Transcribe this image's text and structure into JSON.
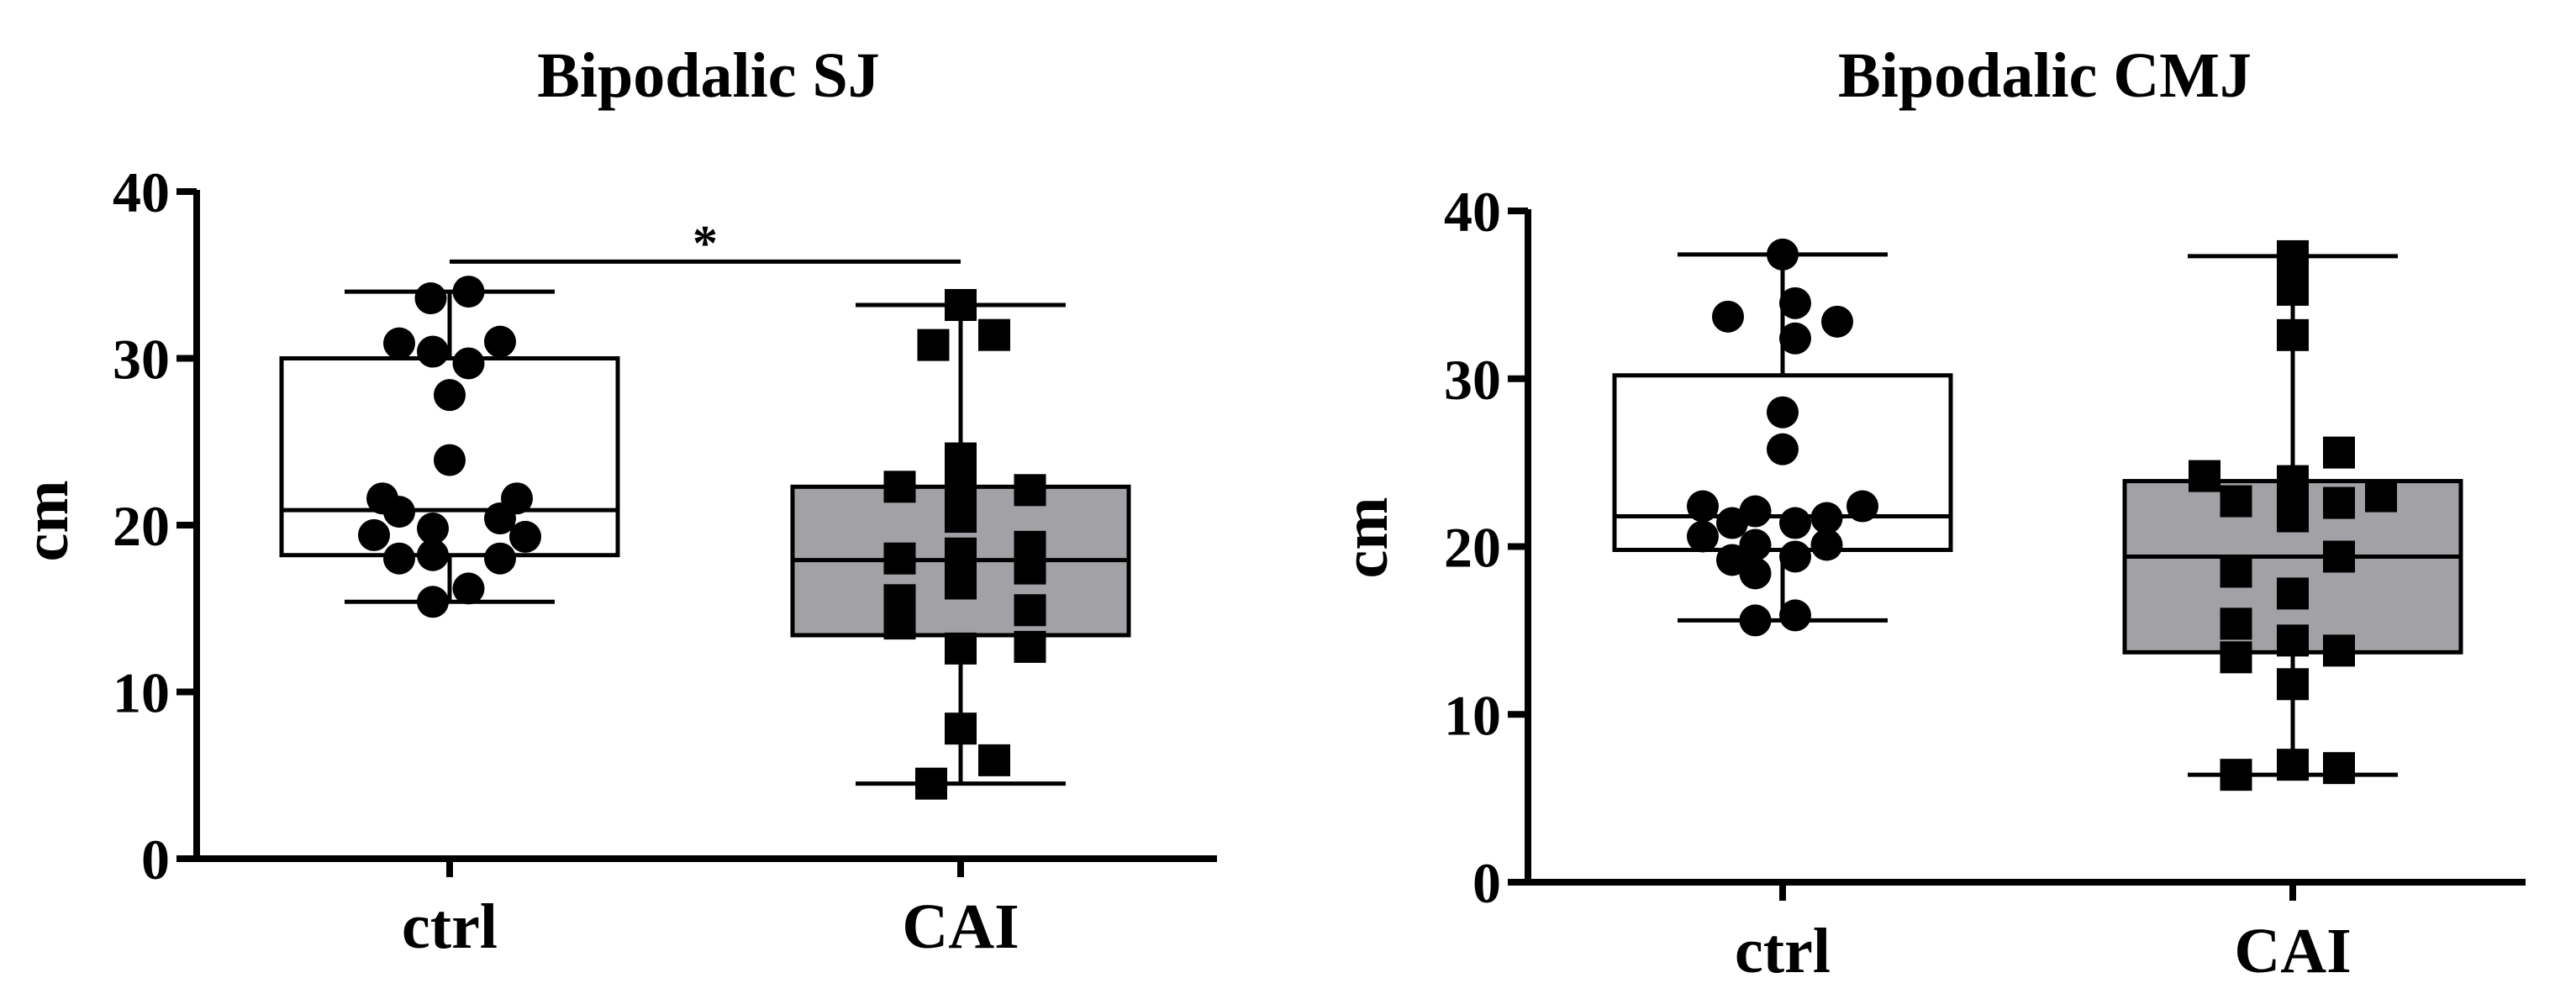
{
  "chart_data": [
    {
      "type": "box",
      "title": "Bipodalic SJ",
      "xlabel": "",
      "ylabel": "cm",
      "ylim": [
        0,
        40
      ],
      "yticks": [
        0,
        10,
        20,
        30,
        40
      ],
      "categories": [
        "ctrl",
        "CAI"
      ],
      "significance": {
        "from": "ctrl",
        "to": "CAI",
        "label": "*",
        "y": 35.8
      },
      "groups": [
        {
          "name": "ctrl",
          "marker": "circle",
          "box_color": "#ffffff",
          "min": 15.4,
          "q1": 18.2,
          "median": 20.9,
          "q3": 30.0,
          "max": 34.0,
          "points": [
            {
              "x": -0.36,
              "y": 19.4
            },
            {
              "x": -0.32,
              "y": 21.6
            },
            {
              "x": -0.24,
              "y": 30.9
            },
            {
              "x": -0.24,
              "y": 20.8
            },
            {
              "x": -0.24,
              "y": 18.0
            },
            {
              "x": -0.09,
              "y": 33.6
            },
            {
              "x": -0.08,
              "y": 30.4
            },
            {
              "x": -0.08,
              "y": 19.8
            },
            {
              "x": -0.08,
              "y": 18.2
            },
            {
              "x": -0.08,
              "y": 15.4
            },
            {
              "x": 0.0,
              "y": 27.8
            },
            {
              "x": 0.0,
              "y": 23.9
            },
            {
              "x": 0.09,
              "y": 34.0
            },
            {
              "x": 0.09,
              "y": 29.7
            },
            {
              "x": 0.09,
              "y": 16.2
            },
            {
              "x": 0.24,
              "y": 31.0
            },
            {
              "x": 0.24,
              "y": 20.4
            },
            {
              "x": 0.24,
              "y": 18.0
            },
            {
              "x": 0.32,
              "y": 21.6
            },
            {
              "x": 0.36,
              "y": 19.3
            }
          ]
        },
        {
          "name": "CAI",
          "marker": "square",
          "box_color": "#a2a1a6",
          "min": 4.5,
          "q1": 13.4,
          "median": 17.9,
          "q3": 22.3,
          "max": 33.2,
          "points": [
            {
              "x": -0.29,
              "y": 22.3
            },
            {
              "x": -0.29,
              "y": 18.0
            },
            {
              "x": -0.29,
              "y": 15.5
            },
            {
              "x": -0.29,
              "y": 14.1
            },
            {
              "x": -0.13,
              "y": 30.8
            },
            {
              "x": -0.14,
              "y": 4.5
            },
            {
              "x": 0.0,
              "y": 33.2
            },
            {
              "x": 0.0,
              "y": 24.0
            },
            {
              "x": 0.0,
              "y": 23.3
            },
            {
              "x": 0.0,
              "y": 22.2
            },
            {
              "x": 0.0,
              "y": 20.5
            },
            {
              "x": 0.0,
              "y": 18.3
            },
            {
              "x": 0.0,
              "y": 17.7
            },
            {
              "x": 0.0,
              "y": 16.5
            },
            {
              "x": 0.0,
              "y": 12.6
            },
            {
              "x": 0.0,
              "y": 7.8
            },
            {
              "x": 0.16,
              "y": 31.4
            },
            {
              "x": 0.16,
              "y": 5.9
            },
            {
              "x": 0.33,
              "y": 22.1
            },
            {
              "x": 0.33,
              "y": 18.7
            },
            {
              "x": 0.33,
              "y": 17.4
            },
            {
              "x": 0.33,
              "y": 14.9
            },
            {
              "x": 0.33,
              "y": 12.7
            }
          ]
        }
      ]
    },
    {
      "type": "box",
      "title": "Bipodalic CMJ",
      "xlabel": "",
      "ylabel": "cm",
      "ylim": [
        0,
        40
      ],
      "yticks": [
        0,
        10,
        20,
        30,
        40
      ],
      "categories": [
        "ctrl",
        "CAI"
      ],
      "groups": [
        {
          "name": "ctrl",
          "marker": "circle",
          "box_color": "#ffffff",
          "min": 15.6,
          "q1": 19.8,
          "median": 21.8,
          "q3": 30.2,
          "max": 37.4,
          "points": [
            {
              "x": 0.0,
              "y": 37.4
            },
            {
              "x": -0.26,
              "y": 33.7
            },
            {
              "x": 0.06,
              "y": 34.5
            },
            {
              "x": 0.06,
              "y": 32.4
            },
            {
              "x": 0.26,
              "y": 33.4
            },
            {
              "x": 0.0,
              "y": 28.0
            },
            {
              "x": 0.0,
              "y": 25.8
            },
            {
              "x": -0.38,
              "y": 22.4
            },
            {
              "x": -0.38,
              "y": 20.6
            },
            {
              "x": -0.24,
              "y": 21.4
            },
            {
              "x": -0.24,
              "y": 19.2
            },
            {
              "x": -0.13,
              "y": 22.1
            },
            {
              "x": -0.13,
              "y": 20.1
            },
            {
              "x": -0.13,
              "y": 18.4
            },
            {
              "x": -0.13,
              "y": 15.6
            },
            {
              "x": 0.06,
              "y": 21.4
            },
            {
              "x": 0.06,
              "y": 19.4
            },
            {
              "x": 0.06,
              "y": 15.9
            },
            {
              "x": 0.21,
              "y": 21.7
            },
            {
              "x": 0.21,
              "y": 20.1
            },
            {
              "x": 0.38,
              "y": 22.4
            }
          ]
        },
        {
          "name": "CAI",
          "marker": "square",
          "box_color": "#a2a1a6",
          "min": 6.4,
          "q1": 13.7,
          "median": 19.4,
          "q3": 23.9,
          "max": 37.3,
          "points": [
            {
              "x": 0.0,
              "y": 37.3
            },
            {
              "x": 0.0,
              "y": 36.2
            },
            {
              "x": 0.0,
              "y": 35.3
            },
            {
              "x": 0.0,
              "y": 32.6
            },
            {
              "x": -0.42,
              "y": 24.2
            },
            {
              "x": -0.27,
              "y": 22.7
            },
            {
              "x": -0.27,
              "y": 18.5
            },
            {
              "x": -0.27,
              "y": 15.4
            },
            {
              "x": -0.27,
              "y": 13.4
            },
            {
              "x": -0.27,
              "y": 6.4
            },
            {
              "x": 0.0,
              "y": 23.9
            },
            {
              "x": 0.0,
              "y": 23.1
            },
            {
              "x": 0.0,
              "y": 21.8
            },
            {
              "x": 0.0,
              "y": 17.2
            },
            {
              "x": 0.0,
              "y": 14.4
            },
            {
              "x": 0.0,
              "y": 11.8
            },
            {
              "x": 0.0,
              "y": 7.0
            },
            {
              "x": 0.22,
              "y": 25.6
            },
            {
              "x": 0.22,
              "y": 22.6
            },
            {
              "x": 0.22,
              "y": 19.4
            },
            {
              "x": 0.22,
              "y": 13.8
            },
            {
              "x": 0.22,
              "y": 6.8
            },
            {
              "x": 0.42,
              "y": 23.0
            }
          ]
        }
      ]
    }
  ]
}
